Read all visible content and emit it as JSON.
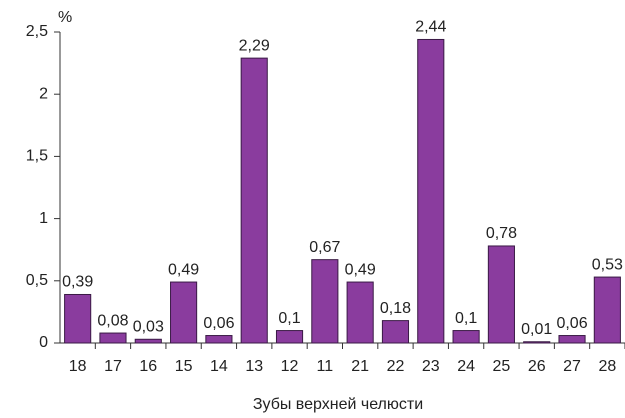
{
  "chart_data": {
    "type": "bar",
    "unit_label": "%",
    "x_label": "Зубы верхней челюсти",
    "categories": [
      "18",
      "17",
      "16",
      "15",
      "14",
      "13",
      "12",
      "11",
      "21",
      "22",
      "23",
      "24",
      "25",
      "26",
      "27",
      "28"
    ],
    "values": [
      0.39,
      0.08,
      0.03,
      0.49,
      0.06,
      2.29,
      0.1,
      0.67,
      0.49,
      0.18,
      2.44,
      0.1,
      0.78,
      0.01,
      0.06,
      0.53
    ],
    "value_labels": [
      "0,39",
      "0,08",
      "0,03",
      "0,49",
      "0,06",
      "2,29",
      "0,1",
      "0,67",
      "0,49",
      "0,18",
      "2,44",
      "0,1",
      "0,78",
      "0,01",
      "0,06",
      "0,53"
    ],
    "color": "#8a3c9e",
    "ylim": [
      0,
      2.5
    ],
    "yticks": [
      0,
      {
        "value": 0.5,
        "label": "0,5"
      },
      1,
      {
        "value": 1.5,
        "label": "1,5"
      },
      2,
      {
        "value": 2.5,
        "label": "2,5"
      }
    ],
    "grid": false
  }
}
